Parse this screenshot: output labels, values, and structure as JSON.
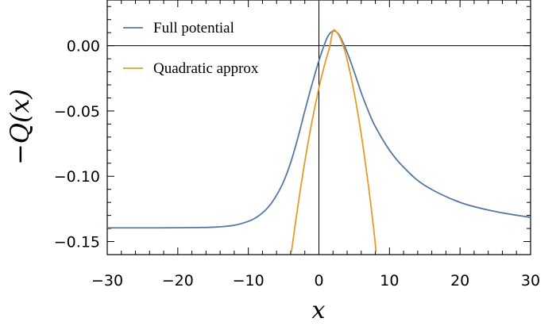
{
  "chart_data": {
    "type": "line",
    "xlabel": "x",
    "ylabel": "−Q(x)",
    "xlim": [
      -30,
      30
    ],
    "ylim": [
      -0.16,
      0.035
    ],
    "xticks": [
      -30,
      -20,
      -10,
      0,
      10,
      20,
      30
    ],
    "xtick_labels": [
      "−30",
      "−20",
      "−10",
      "0",
      "10",
      "20",
      "30"
    ],
    "yticks": [
      0.0,
      -0.05,
      -0.1,
      -0.15
    ],
    "ytick_labels": [
      "0.00",
      "−0.05",
      "−0.10",
      "−0.15"
    ],
    "reference_lines": {
      "x": 0,
      "y": 0
    },
    "legend_position": "top-left",
    "series": [
      {
        "name": "Full potential",
        "color": "#5778a4",
        "points": [
          [
            -30,
            -0.1395
          ],
          [
            -25,
            -0.1395
          ],
          [
            -20,
            -0.1394
          ],
          [
            -15,
            -0.139
          ],
          [
            -12,
            -0.1375
          ],
          [
            -10,
            -0.1345
          ],
          [
            -9,
            -0.132
          ],
          [
            -8,
            -0.128
          ],
          [
            -7,
            -0.1225
          ],
          [
            -6,
            -0.1145
          ],
          [
            -5,
            -0.104
          ],
          [
            -4,
            -0.0895
          ],
          [
            -3,
            -0.071
          ],
          [
            -2,
            -0.05
          ],
          [
            -1,
            -0.03
          ],
          [
            0,
            -0.0115
          ],
          [
            1,
            0.004
          ],
          [
            1.5,
            0.009
          ],
          [
            2,
            0.0112
          ],
          [
            2.5,
            0.0105
          ],
          [
            3,
            0.007
          ],
          [
            4,
            -0.005
          ],
          [
            5,
            -0.02
          ],
          [
            6,
            -0.036
          ],
          [
            7,
            -0.05
          ],
          [
            8,
            -0.062
          ],
          [
            10,
            -0.08
          ],
          [
            12,
            -0.093
          ],
          [
            15,
            -0.107
          ],
          [
            20,
            -0.12
          ],
          [
            25,
            -0.127
          ],
          [
            30,
            -0.1315
          ]
        ]
      },
      {
        "name": "Quadratic approx",
        "color": "#e49b2a",
        "points": [
          [
            -3.9,
            -0.158
          ],
          [
            -3,
            -0.1236
          ],
          [
            -2,
            -0.0889
          ],
          [
            -1,
            -0.0585
          ],
          [
            0,
            -0.0324
          ],
          [
            0.5,
            -0.0211
          ],
          [
            1,
            -0.0107
          ],
          [
            1.5,
            -0.0015
          ],
          [
            2,
            0.0112
          ],
          [
            2.5,
            0.0105
          ],
          [
            3,
            0.006
          ],
          [
            3.5,
            -0.001
          ],
          [
            4,
            -0.0105
          ],
          [
            5,
            -0.036
          ],
          [
            6,
            -0.068
          ],
          [
            7,
            -0.1065
          ],
          [
            7.8,
            -0.142
          ],
          [
            8.1,
            -0.158
          ]
        ]
      }
    ]
  }
}
